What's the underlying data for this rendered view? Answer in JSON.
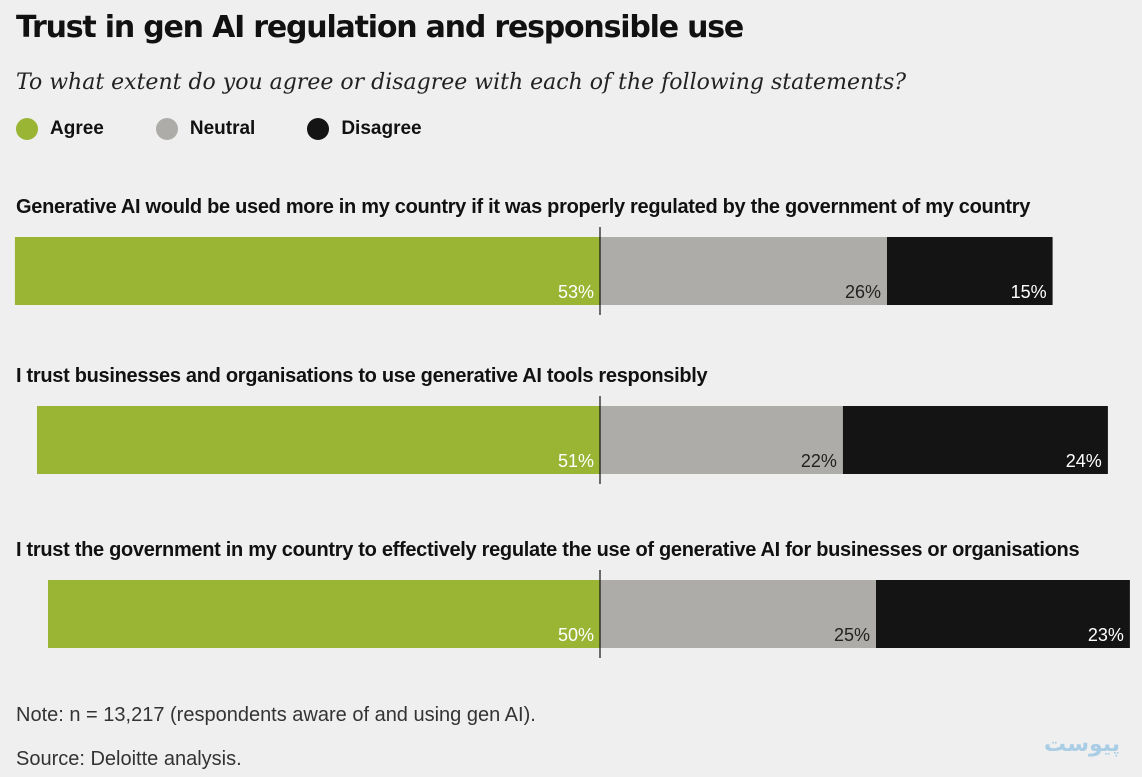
{
  "title": "Trust in gen AI regulation and responsible use",
  "subtitle": "To what extent do you agree or disagree with each of the following statements?",
  "legend": [
    {
      "label": "Agree",
      "color": "#9ab533"
    },
    {
      "label": "Neutral",
      "color": "#aeaca8"
    },
    {
      "label": "Disagree",
      "color": "#141414"
    }
  ],
  "chart_data": {
    "type": "bar",
    "orientation": "horizontal",
    "stacked": "diverging",
    "categories": [
      "Generative AI would be used more in my country if it was properly regulated by the government of my country",
      "I trust businesses and organisations to use generative AI tools responsibly",
      "I trust the government in my country to effectively regulate the use of generative AI for businesses or organisations"
    ],
    "series": [
      {
        "name": "Agree",
        "values": [
          53,
          51,
          50
        ]
      },
      {
        "name": "Neutral",
        "values": [
          26,
          22,
          25
        ]
      },
      {
        "name": "Disagree",
        "values": [
          15,
          24,
          23
        ]
      }
    ],
    "data_labels": [
      [
        "53%",
        "26%",
        "15%"
      ],
      [
        "51%",
        "22%",
        "24%"
      ],
      [
        "50%",
        "25%",
        "23%"
      ]
    ],
    "legend": "top-left"
  },
  "note": "Note: n = 13,217 (respondents aware of and using gen AI).",
  "source": "Source: Deloitte analysis.",
  "logo_text": "پیوست"
}
